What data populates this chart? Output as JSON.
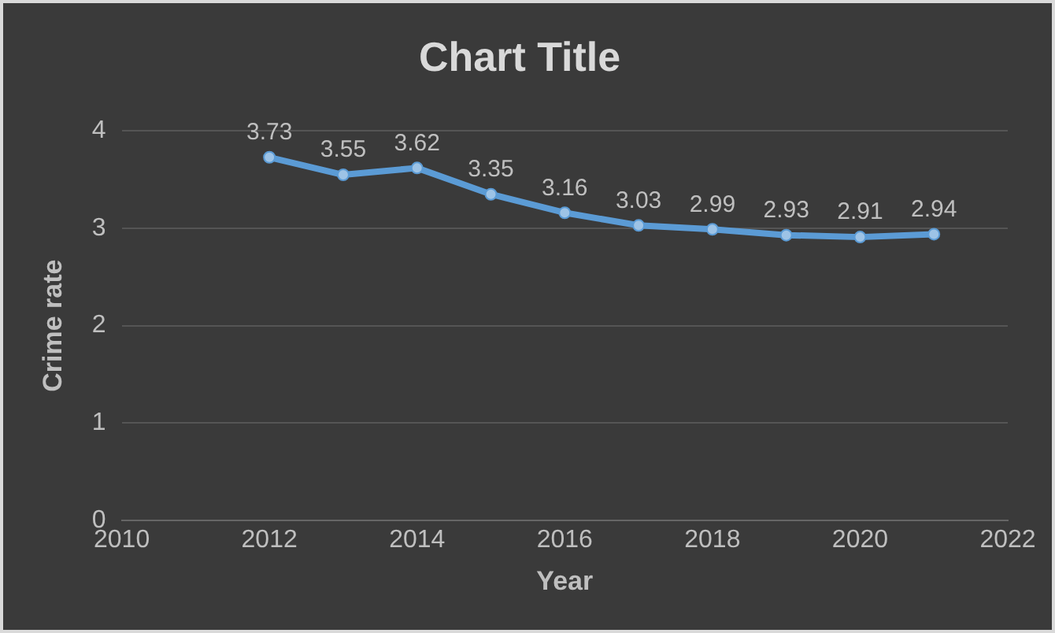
{
  "chart_data": {
    "type": "line",
    "title": "Chart Title",
    "xlabel": "Year",
    "ylabel": "Crime rate",
    "x": [
      2012,
      2013,
      2014,
      2015,
      2016,
      2017,
      2018,
      2019,
      2020,
      2021
    ],
    "series": [
      {
        "color": "#5b9bd5",
        "values": [
          3.73,
          3.55,
          3.62,
          3.35,
          3.16,
          3.03,
          2.99,
          2.93,
          2.91,
          2.94
        ]
      }
    ],
    "xlim": [
      2010,
      2022
    ],
    "xticks": [
      2010,
      2012,
      2014,
      2016,
      2018,
      2020,
      2022
    ],
    "ylim": [
      0,
      4
    ],
    "yticks": [
      0,
      1,
      2,
      3,
      4
    ],
    "grid": "y",
    "marker": "circle",
    "data_labels": true,
    "legend": false
  }
}
